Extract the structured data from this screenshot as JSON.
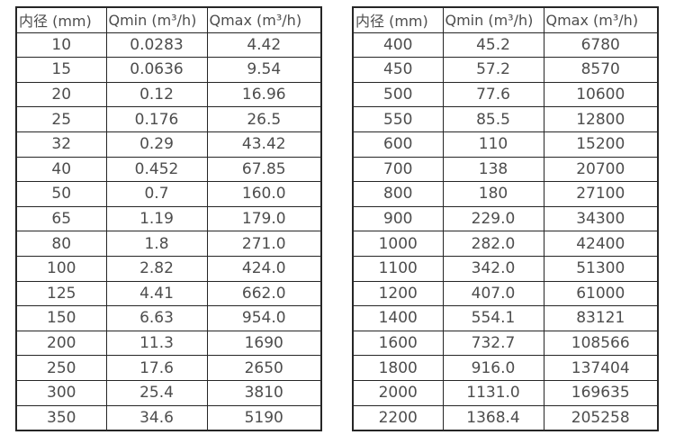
{
  "page": {
    "background_color": "#ffffff",
    "text_color": "#4d4d4d",
    "border_color": "#262626"
  },
  "tables": [
    {
      "name": "small-diameters",
      "headers": [
        "内径 (mm)",
        "Qmin (m³/h)",
        "Qmax (m³/h)"
      ],
      "rows": [
        [
          "10",
          "0.0283",
          "4.42"
        ],
        [
          "15",
          "0.0636",
          "9.54"
        ],
        [
          "20",
          "0.12",
          "16.96"
        ],
        [
          "25",
          "0.176",
          "26.5"
        ],
        [
          "32",
          "0.29",
          "43.42"
        ],
        [
          "40",
          "0.452",
          "67.85"
        ],
        [
          "50",
          "0.7",
          "160.0"
        ],
        [
          "65",
          "1.19",
          "179.0"
        ],
        [
          "80",
          "1.8",
          "271.0"
        ],
        [
          "100",
          "2.82",
          "424.0"
        ],
        [
          "125",
          "4.41",
          "662.0"
        ],
        [
          "150",
          "6.63",
          "954.0"
        ],
        [
          "200",
          "11.3",
          "1690"
        ],
        [
          "250",
          "17.6",
          "2650"
        ],
        [
          "300",
          "25.4",
          "3810"
        ],
        [
          "350",
          "34.6",
          "5190"
        ]
      ]
    },
    {
      "name": "large-diameters",
      "headers": [
        "内径 (mm)",
        "Qmin (m³/h)",
        "Qmax (m³/h)"
      ],
      "rows": [
        [
          "400",
          "45.2",
          "6780"
        ],
        [
          "450",
          "57.2",
          "8570"
        ],
        [
          "500",
          "77.6",
          "10600"
        ],
        [
          "550",
          "85.5",
          "12800"
        ],
        [
          "600",
          "110",
          "15200"
        ],
        [
          "700",
          "138",
          "20700"
        ],
        [
          "800",
          "180",
          "27100"
        ],
        [
          "900",
          "229.0",
          "34300"
        ],
        [
          "1000",
          "282.0",
          "42400"
        ],
        [
          "1100",
          "342.0",
          "51300"
        ],
        [
          "1200",
          "407.0",
          "61000"
        ],
        [
          "1400",
          "554.1",
          "83121"
        ],
        [
          "1600",
          "732.7",
          "108566"
        ],
        [
          "1800",
          "916.0",
          "137404"
        ],
        [
          "2000",
          "1131.0",
          "169635"
        ],
        [
          "2200",
          "1368.4",
          "205258"
        ]
      ]
    }
  ]
}
